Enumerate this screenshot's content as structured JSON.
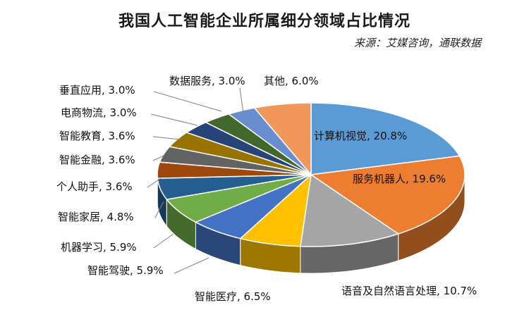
{
  "chart_data": {
    "type": "pie",
    "title": "我国人工智能企业所属细分领域占比情况",
    "source": "来源：艾媒咨询，通联数据",
    "series": [
      {
        "name": "计算机视觉",
        "value": 20.8,
        "label": "计算机视觉, 20.8%",
        "color": "#5B9BD5"
      },
      {
        "name": "服务机器人",
        "value": 19.6,
        "label": "服务机器人, 19.6%",
        "color": "#ED7D31"
      },
      {
        "name": "语音及自然语言处理",
        "value": 10.7,
        "label": "语音及自然语言处理, 10.7%",
        "color": "#A5A5A5"
      },
      {
        "name": "智能医疗",
        "value": 6.5,
        "label": "智能医疗, 6.5%",
        "color": "#FFC000"
      },
      {
        "name": "智能驾驶",
        "value": 5.9,
        "label": "智能驾驶, 5.9%",
        "color": "#4472C4"
      },
      {
        "name": "机器学习",
        "value": 5.9,
        "label": "机器学习, 5.9%",
        "color": "#70AD47"
      },
      {
        "name": "智能家居",
        "value": 4.8,
        "label": "智能家居, 4.8%",
        "color": "#255E91"
      },
      {
        "name": "个人助手",
        "value": 3.6,
        "label": "个人助手, 3.6%",
        "color": "#9E480E"
      },
      {
        "name": "智能金融",
        "value": 3.6,
        "label": "智能金融, 3.6%",
        "color": "#636363"
      },
      {
        "name": "智能教育",
        "value": 3.6,
        "label": "智能教育, 3.6%",
        "color": "#997300"
      },
      {
        "name": "电商物流",
        "value": 3.0,
        "label": "电商物流, 3.0%",
        "color": "#264478"
      },
      {
        "name": "垂直应用",
        "value": 3.0,
        "label": "垂直应用, 3.0%",
        "color": "#43682B"
      },
      {
        "name": "数据服务",
        "value": 3.0,
        "label": "数据服务, 3.0%",
        "color": "#698ED0"
      },
      {
        "name": "其他",
        "value": 6.0,
        "label": "其他, 6.0%",
        "color": "#F1975A"
      }
    ]
  }
}
